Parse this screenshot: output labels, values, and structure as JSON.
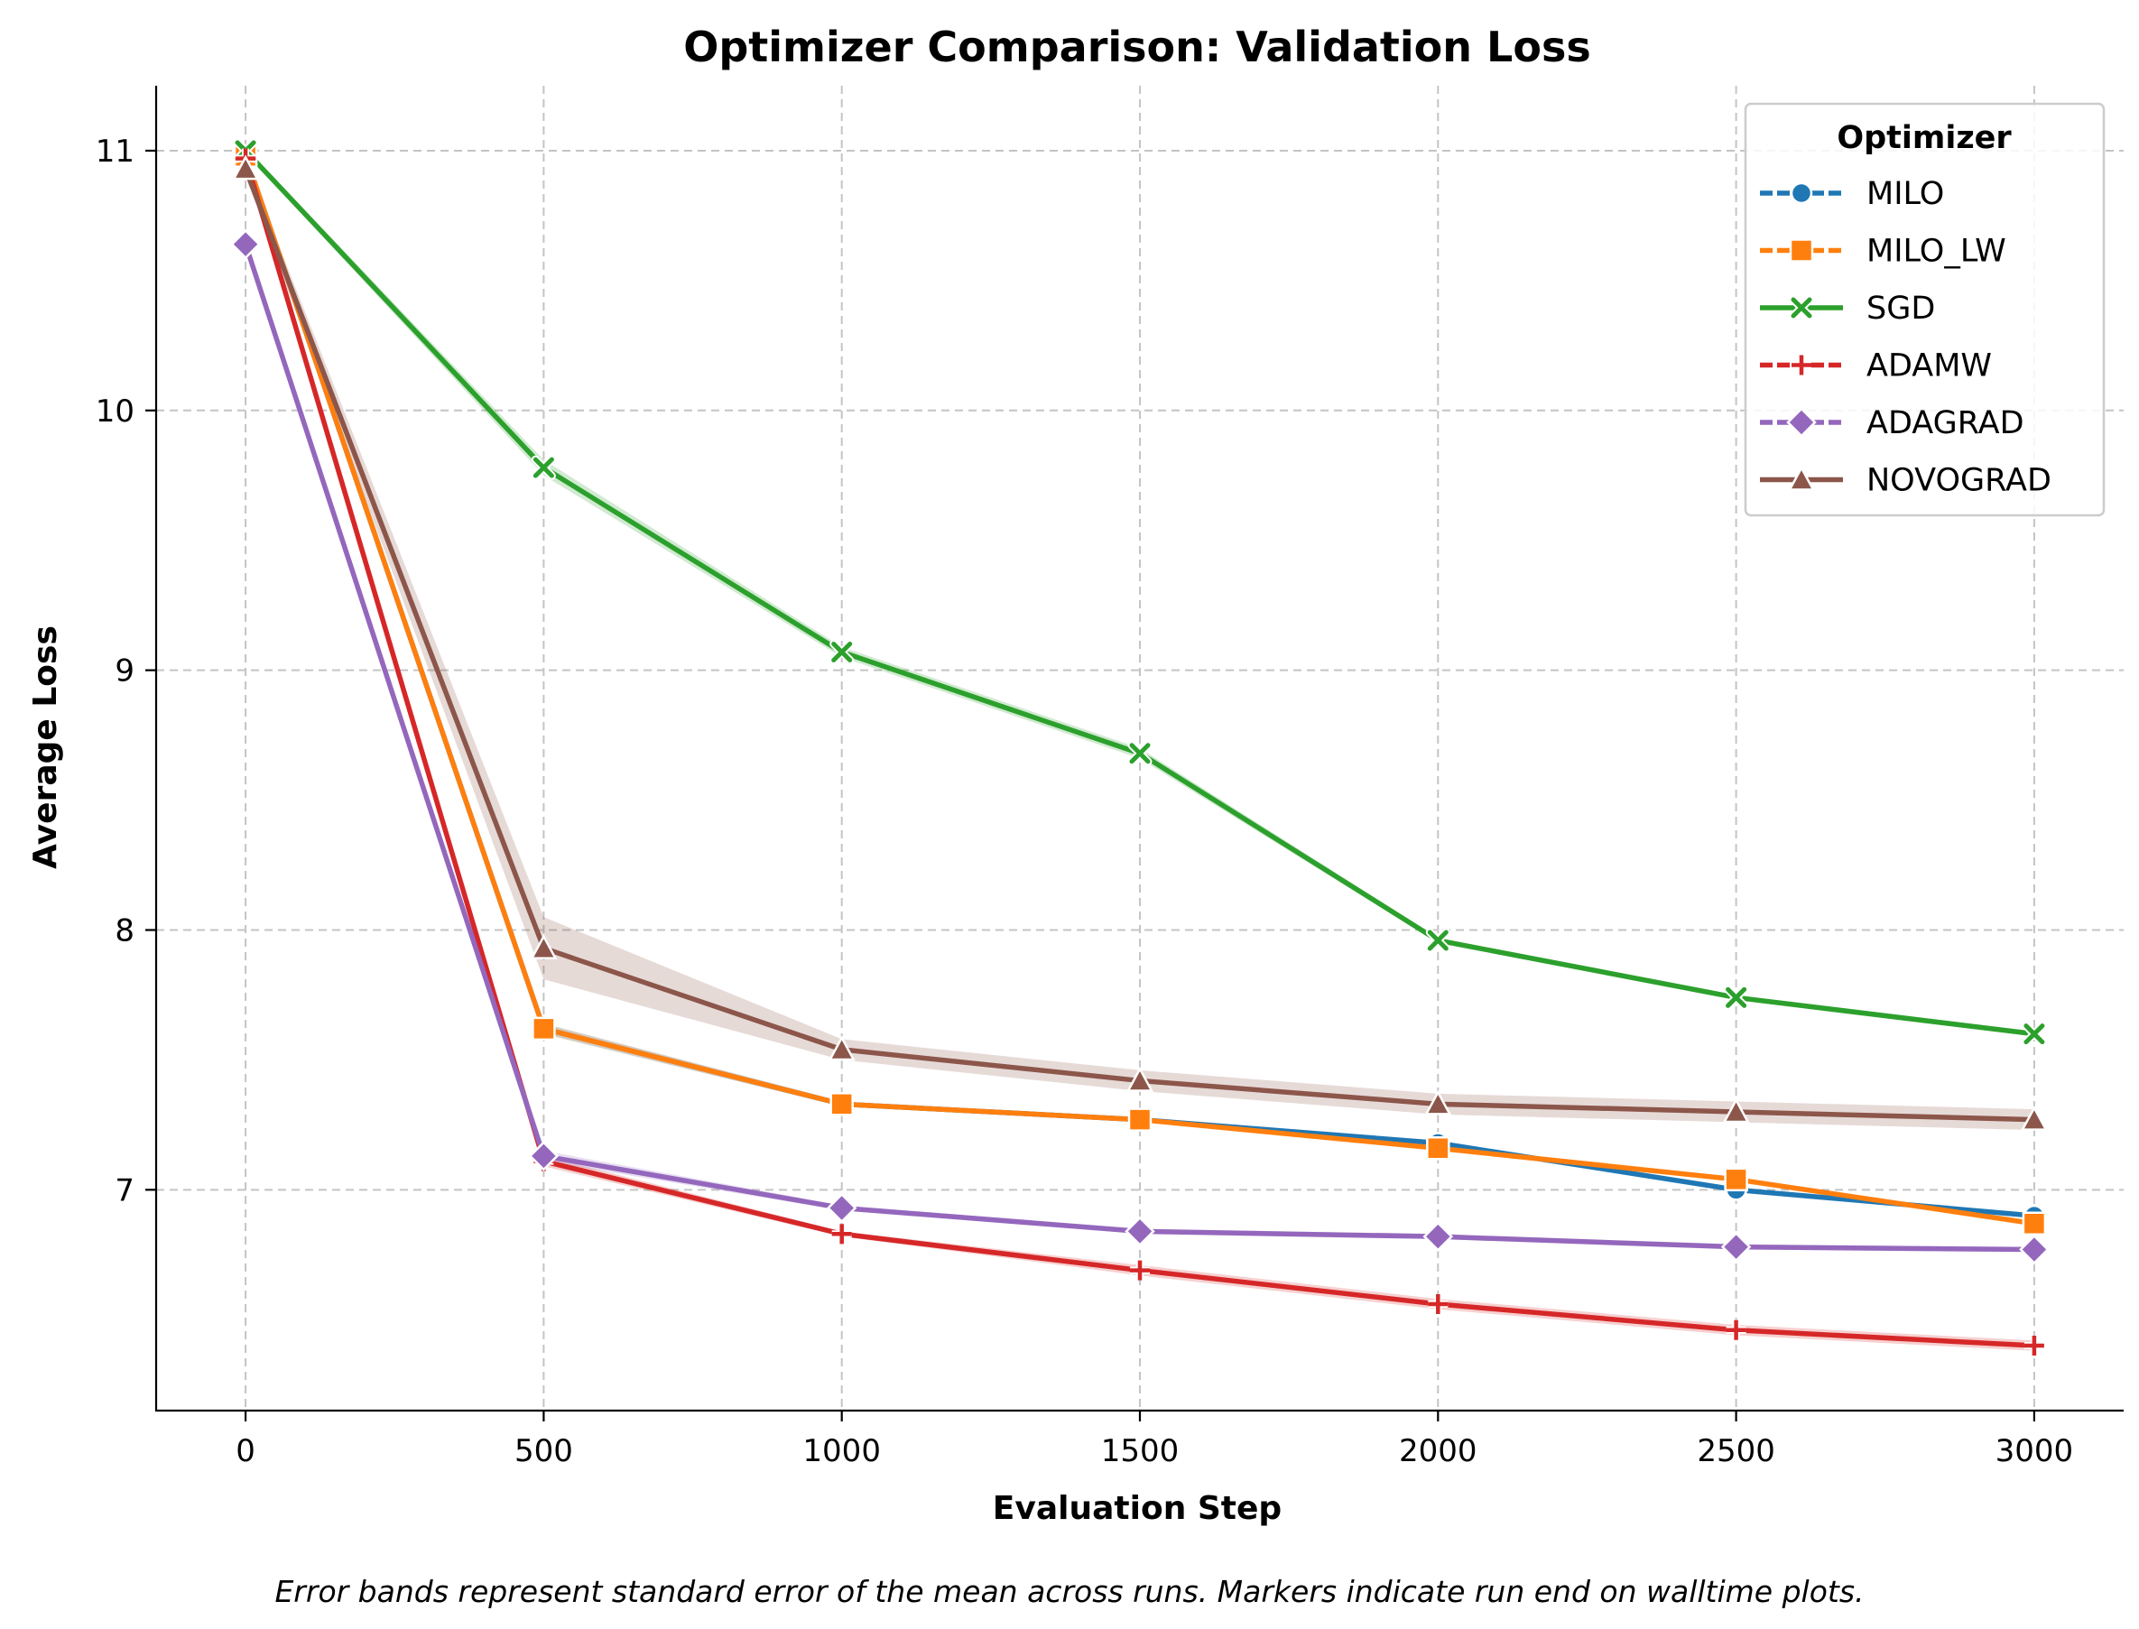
{
  "chart_data": {
    "type": "line",
    "title": "Optimizer Comparison: Validation Loss",
    "xlabel": "Evaluation Step",
    "ylabel": "Average Loss",
    "caption": "Error bands represent standard error of the mean across runs. Markers indicate run end on walltime plots.",
    "xlim": [
      -150,
      3150
    ],
    "ylim": [
      6.15,
      11.25
    ],
    "xticks": [
      0,
      500,
      1000,
      1500,
      2000,
      2500,
      3000
    ],
    "xtick_labels": [
      "0",
      "500",
      "1000",
      "1500",
      "2000",
      "2500",
      "3000"
    ],
    "yticks": [
      7,
      8,
      9,
      10,
      11
    ],
    "ytick_labels": [
      "7",
      "8",
      "9",
      "10",
      "11"
    ],
    "grid": true,
    "legend": {
      "title": "Optimizer",
      "position": "top-right"
    },
    "x": [
      0,
      500,
      1000,
      1500,
      2000,
      2500,
      3000
    ],
    "series": [
      {
        "name": "MILO",
        "color": "#1f77b4",
        "marker": "circle",
        "values": [
          10.98,
          7.62,
          7.33,
          7.27,
          7.18,
          7.0,
          6.9
        ],
        "err": [
          0.02,
          0.02,
          0.01,
          0.01,
          0.01,
          0.01,
          0.01
        ]
      },
      {
        "name": "MILO_LW",
        "color": "#ff7f0e",
        "marker": "square",
        "values": [
          10.98,
          7.62,
          7.33,
          7.27,
          7.16,
          7.04,
          6.87
        ],
        "err": [
          0.02,
          0.02,
          0.01,
          0.01,
          0.01,
          0.01,
          0.01
        ]
      },
      {
        "name": "SGD",
        "color": "#2ca02c",
        "marker": "x",
        "values": [
          11.0,
          9.78,
          9.07,
          8.68,
          7.96,
          7.74,
          7.6
        ],
        "err": [
          0.01,
          0.03,
          0.02,
          0.02,
          0.01,
          0.01,
          0.01
        ]
      },
      {
        "name": "ADAMW",
        "color": "#d62728",
        "marker": "plus",
        "values": [
          10.97,
          7.11,
          6.83,
          6.69,
          6.56,
          6.46,
          6.4
        ],
        "err": [
          0.02,
          0.02,
          0.01,
          0.02,
          0.02,
          0.02,
          0.02
        ]
      },
      {
        "name": "ADAGRAD",
        "color": "#9467bd",
        "marker": "diamond",
        "values": [
          10.64,
          7.13,
          6.93,
          6.84,
          6.82,
          6.78,
          6.77
        ],
        "err": [
          0.01,
          0.02,
          0.01,
          0.01,
          0.01,
          0.01,
          0.01
        ]
      },
      {
        "name": "NOVOGRAD",
        "color": "#8c564b",
        "marker": "triangle",
        "values": [
          10.93,
          7.93,
          7.54,
          7.42,
          7.33,
          7.3,
          7.27
        ],
        "err": [
          0.03,
          0.12,
          0.04,
          0.04,
          0.04,
          0.04,
          0.04
        ]
      }
    ]
  }
}
